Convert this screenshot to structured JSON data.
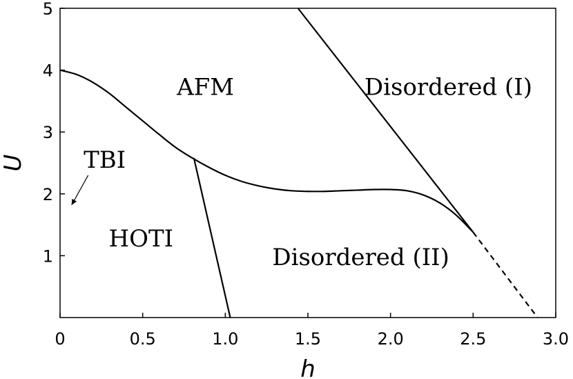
{
  "chart_data": {
    "type": "line",
    "title": "",
    "xlabel": "h",
    "ylabel": "U",
    "xlim": [
      0,
      3.0
    ],
    "ylim": [
      0,
      5
    ],
    "xticks": [
      0,
      0.5,
      1.0,
      1.5,
      2.0,
      2.5,
      3.0
    ],
    "xtick_labels": [
      "0",
      "0.5",
      "1.0",
      "1.5",
      "2.0",
      "2.5",
      "3.0"
    ],
    "yticks": [
      1,
      2,
      3,
      4,
      5
    ],
    "ytick_labels": [
      "1",
      "2",
      "3",
      "4",
      "5"
    ],
    "grid": false,
    "series": [
      {
        "style": "solid",
        "x": [
          0,
          0.1,
          0.2,
          0.3,
          0.4,
          0.5,
          0.6,
          0.7,
          0.8,
          0.9,
          1.0,
          1.1,
          1.2,
          1.3,
          1.4,
          1.5,
          1.6,
          1.7,
          1.8,
          1.9,
          2.0,
          2.1,
          2.2,
          2.3,
          2.4,
          2.5
        ],
        "y": [
          4.0,
          3.93,
          3.8,
          3.62,
          3.4,
          3.18,
          2.96,
          2.75,
          2.58,
          2.43,
          2.3,
          2.2,
          2.13,
          2.08,
          2.05,
          2.04,
          2.04,
          2.05,
          2.06,
          2.07,
          2.07,
          2.05,
          1.98,
          1.85,
          1.65,
          1.38
        ]
      },
      {
        "style": "solid",
        "x": [
          1.44,
          2.5
        ],
        "y": [
          5.0,
          1.38
        ]
      },
      {
        "style": "dashed",
        "x": [
          2.5,
          2.89
        ],
        "y": [
          1.38,
          0.0
        ]
      },
      {
        "style": "solid",
        "x": [
          0.81,
          1.03
        ],
        "y": [
          2.58,
          0.0
        ]
      }
    ],
    "annotations": [
      {
        "text": "AFM",
        "x": 0.88,
        "y": 3.7
      },
      {
        "text": "Disordered (I)",
        "x": 2.35,
        "y": 3.7
      },
      {
        "text": "TBI",
        "x": 0.27,
        "y": 2.52
      },
      {
        "text": "HOTI",
        "x": 0.49,
        "y": 1.25
      },
      {
        "text": "Disordered (II)",
        "x": 1.82,
        "y": 0.95
      }
    ],
    "arrow": {
      "from": {
        "x": 0.17,
        "y": 2.3
      },
      "to": {
        "x": 0.07,
        "y": 1.82
      }
    }
  }
}
